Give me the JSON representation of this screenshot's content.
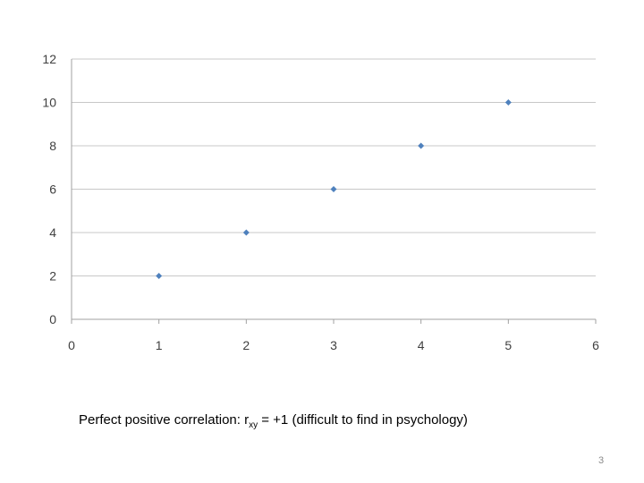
{
  "chart_data": {
    "type": "scatter",
    "title": "",
    "xlabel": "",
    "ylabel": "",
    "x": [
      1,
      2,
      3,
      4,
      5
    ],
    "y": [
      2,
      4,
      6,
      8,
      10
    ],
    "xlim": [
      0,
      6
    ],
    "ylim": [
      0,
      12
    ],
    "x_ticks": [
      "0",
      "1",
      "2",
      "3",
      "4",
      "5",
      "6"
    ],
    "y_ticks": [
      "0",
      "2",
      "4",
      "6",
      "8",
      "10",
      "12"
    ],
    "grid": "horizontal",
    "legend": "none",
    "marker": "diamond",
    "marker_color": "#4f81bd"
  },
  "caption": {
    "prefix": "Perfect positive correlation: r",
    "subscript": "xy",
    "suffix": " = +1 (difficult to find in psychology)"
  },
  "page_number": "3",
  "colors": {
    "gridline": "#c8c8c8",
    "axis": "#a0a0a0",
    "tick_text": "#404040"
  }
}
